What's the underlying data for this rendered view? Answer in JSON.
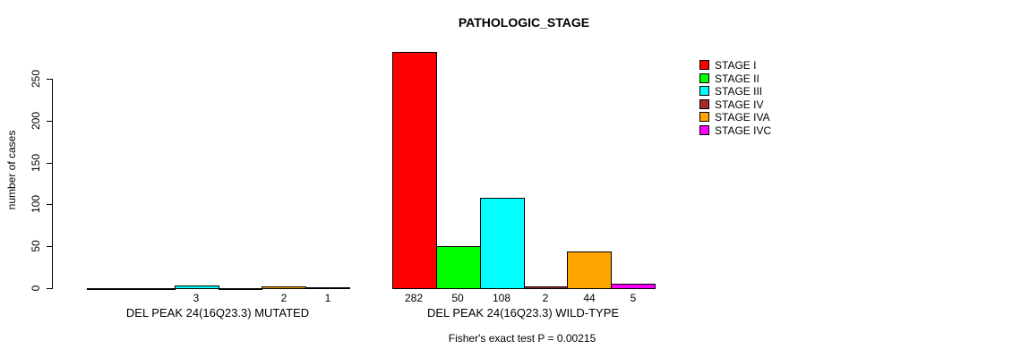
{
  "chart_data": {
    "type": "bar",
    "title": "PATHOLOGIC_STAGE",
    "ylabel": "number of cases",
    "ylim": [
      0,
      250
    ],
    "yticks": [
      0,
      50,
      100,
      150,
      200,
      250
    ],
    "grid": false,
    "legend_position": "right-outside",
    "annotation": "Fisher's exact test P = 0.00215",
    "categories": [
      "STAGE I",
      "STAGE II",
      "STAGE III",
      "STAGE IV",
      "STAGE IVA",
      "STAGE IVC"
    ],
    "colors": [
      "#FF0000",
      "#00FF00",
      "#00FFFF",
      "#A52A2A",
      "#FFA500",
      "#FF00FF"
    ],
    "groups": [
      {
        "label": "DEL PEAK 24(16Q23.3) MUTATED",
        "values": [
          0,
          0,
          3,
          0,
          2,
          1
        ],
        "bar_labels": [
          "",
          "",
          "3",
          "",
          "2",
          "1"
        ]
      },
      {
        "label": "DEL PEAK 24(16Q23.3) WILD-TYPE",
        "values": [
          282,
          50,
          108,
          2,
          44,
          5
        ],
        "bar_labels": [
          "282",
          "50",
          "108",
          "2",
          "44",
          "5"
        ]
      }
    ],
    "legend": [
      {
        "label": "STAGE I",
        "color": "#FF0000"
      },
      {
        "label": "STAGE II",
        "color": "#00FF00"
      },
      {
        "label": "STAGE III",
        "color": "#00FFFF"
      },
      {
        "label": "STAGE IV",
        "color": "#A52A2A"
      },
      {
        "label": "STAGE IVA",
        "color": "#FFA500"
      },
      {
        "label": "STAGE IVC",
        "color": "#FF00FF"
      }
    ]
  }
}
